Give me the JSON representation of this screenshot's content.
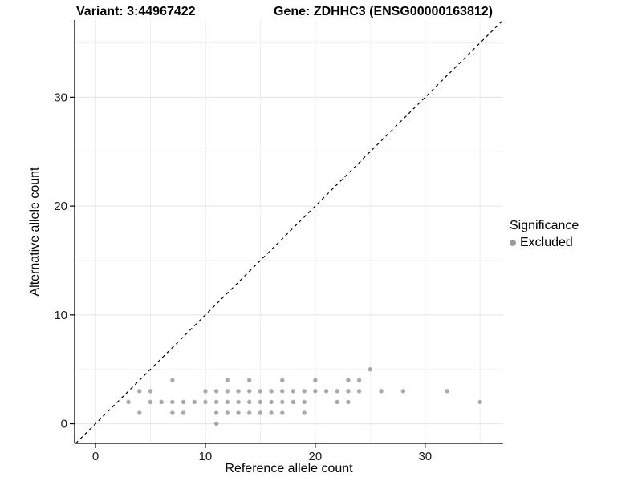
{
  "titles": {
    "variant": "Variant: 3:44967422",
    "gene": "Gene: ZDHHC3 (ENSG00000163812)"
  },
  "legend": {
    "title": "Significance",
    "items": [
      {
        "label": "Excluded",
        "color": "#9b9b9b"
      }
    ]
  },
  "colors": {
    "background": "#ffffff",
    "point": "#9b9b9b",
    "axis_line": "#000000",
    "tick_label": "#1a1a1a",
    "grid_major": "#e3e3e3",
    "grid_minor": "#f1f1f1",
    "identity_line": "#000000"
  },
  "chart_data": {
    "type": "scatter",
    "title": "Variant: 3:44967422  /  Gene: ZDHHC3 (ENSG00000163812)",
    "xlabel": "Reference allele count",
    "ylabel": "Alternative allele count",
    "xlim": [
      -1.9,
      37.1
    ],
    "ylim": [
      -1.8,
      37.1
    ],
    "x_ticks": [
      0,
      10,
      20,
      30
    ],
    "y_ticks": [
      0,
      10,
      20,
      30
    ],
    "x_minor_ticks": [
      5,
      15,
      25,
      35
    ],
    "y_minor_ticks": [
      5,
      15,
      25,
      35
    ],
    "grid": true,
    "legend_position": "right",
    "identity_line": {
      "from": -1.8,
      "to": 37.1,
      "style": "dashed",
      "color": "#000000"
    },
    "series": [
      {
        "name": "Excluded",
        "color": "#9b9b9b",
        "points": [
          [
            25,
            5
          ],
          [
            7,
            4
          ],
          [
            12,
            4
          ],
          [
            14,
            4
          ],
          [
            17,
            4
          ],
          [
            20,
            4
          ],
          [
            23,
            4
          ],
          [
            24,
            4
          ],
          [
            4,
            3
          ],
          [
            5,
            3
          ],
          [
            10,
            3
          ],
          [
            11,
            3
          ],
          [
            12,
            3
          ],
          [
            13,
            3
          ],
          [
            14,
            3
          ],
          [
            15,
            3
          ],
          [
            16,
            3
          ],
          [
            17,
            3
          ],
          [
            18,
            3
          ],
          [
            19,
            3
          ],
          [
            20,
            3
          ],
          [
            21,
            3
          ],
          [
            22,
            3
          ],
          [
            23,
            3
          ],
          [
            24,
            3
          ],
          [
            26,
            3
          ],
          [
            28,
            3
          ],
          [
            32,
            3
          ],
          [
            3,
            2
          ],
          [
            5,
            2
          ],
          [
            6,
            2
          ],
          [
            7,
            2
          ],
          [
            8,
            2
          ],
          [
            9,
            2
          ],
          [
            10,
            2
          ],
          [
            11,
            2
          ],
          [
            12,
            2
          ],
          [
            13,
            2
          ],
          [
            14,
            2
          ],
          [
            15,
            2
          ],
          [
            16,
            2
          ],
          [
            17,
            2
          ],
          [
            18,
            2
          ],
          [
            19,
            2
          ],
          [
            22,
            2
          ],
          [
            23,
            2
          ],
          [
            35,
            2
          ],
          [
            4,
            1
          ],
          [
            7,
            1
          ],
          [
            8,
            1
          ],
          [
            11,
            1
          ],
          [
            12,
            1
          ],
          [
            13,
            1
          ],
          [
            14,
            1
          ],
          [
            15,
            1
          ],
          [
            16,
            1
          ],
          [
            17,
            1
          ],
          [
            19,
            1
          ],
          [
            11,
            0
          ]
        ]
      }
    ]
  }
}
